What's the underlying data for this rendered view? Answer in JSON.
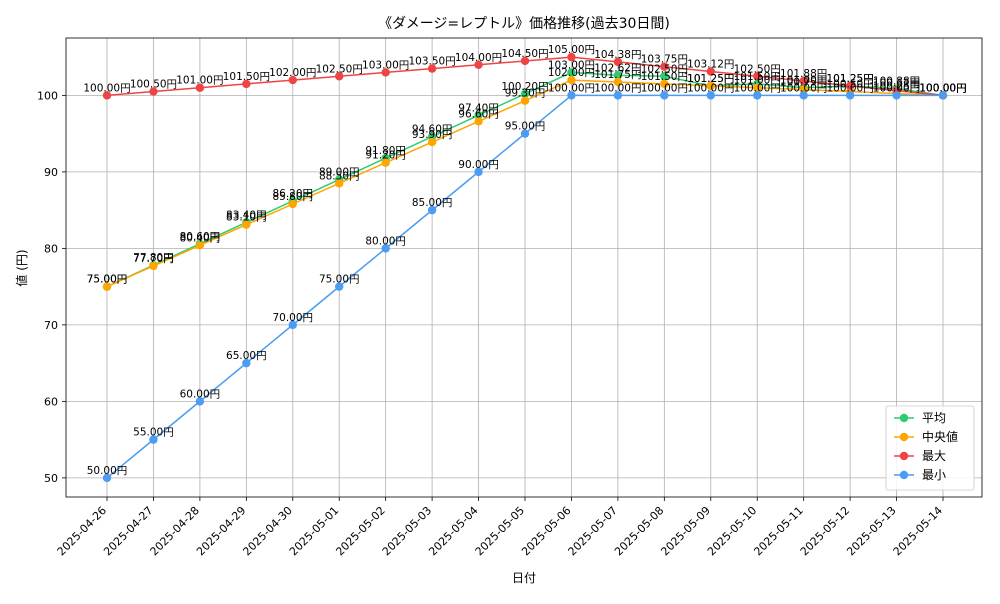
{
  "chart_data": {
    "type": "line",
    "title": "《ダメージ=レプトル》価格推移(過去30日間)",
    "xlabel": "日付",
    "ylabel": "値 (円)",
    "ylim": [
      47.5,
      107.5
    ],
    "yticks": [
      50,
      60,
      70,
      80,
      90,
      100
    ],
    "grid": true,
    "legend_position": "lower-right",
    "value_suffix": "円",
    "categories": [
      "2025-04-26",
      "2025-04-27",
      "2025-04-28",
      "2025-04-29",
      "2025-04-30",
      "2025-05-01",
      "2025-05-02",
      "2025-05-03",
      "2025-05-04",
      "2025-05-05",
      "2025-05-06",
      "2025-05-07",
      "2025-05-08",
      "2025-05-09",
      "2025-05-10",
      "2025-05-11",
      "2025-05-12",
      "2025-05-13",
      "2025-05-14"
    ],
    "series": [
      {
        "name": "平均",
        "color": "#2ecc71",
        "values": [
          75.0,
          77.8,
          80.6,
          83.4,
          86.2,
          89.0,
          91.8,
          94.6,
          97.4,
          100.2,
          103.0,
          102.62,
          102.5,
          101.25,
          101.5,
          101.0,
          101.25,
          100.88,
          100.0
        ]
      },
      {
        "name": "中央値",
        "color": "#ffa500",
        "values": [
          75.0,
          77.7,
          80.4,
          83.1,
          85.8,
          88.5,
          91.2,
          93.9,
          96.6,
          99.3,
          102.0,
          101.75,
          101.5,
          101.25,
          101.0,
          100.75,
          100.5,
          100.25,
          100.0
        ]
      },
      {
        "name": "最大",
        "color": "#ef4444",
        "values": [
          100.0,
          100.5,
          101.0,
          101.5,
          102.0,
          102.5,
          103.0,
          103.5,
          104.0,
          104.5,
          105.0,
          104.38,
          103.75,
          103.12,
          102.5,
          101.88,
          101.25,
          100.62,
          100.0
        ]
      },
      {
        "name": "最小",
        "color": "#4b9cf2",
        "values": [
          50.0,
          55.0,
          60.0,
          65.0,
          70.0,
          75.0,
          80.0,
          85.0,
          90.0,
          95.0,
          100.0,
          100.0,
          100.0,
          100.0,
          100.0,
          100.0,
          100.0,
          100.0,
          100.0
        ]
      }
    ]
  }
}
